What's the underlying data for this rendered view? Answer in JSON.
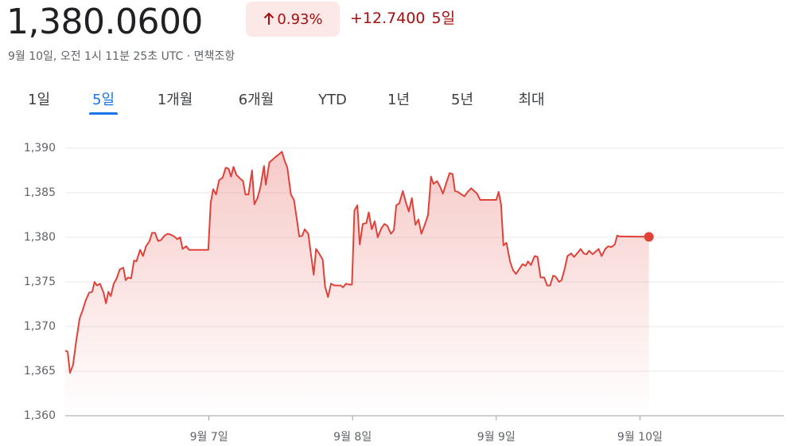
{
  "header": {
    "price": "1,380.0600",
    "change_percent": "0.93%",
    "change": "+12.7400",
    "period": "5일",
    "timestamp": "9월 10일, 오전 1시 11분 25초 UTC · 면책조항"
  },
  "tabs": {
    "items": [
      "1일",
      "5일",
      "1개월",
      "6개월",
      "YTD",
      "1년",
      "5년",
      "최대"
    ],
    "selected": 1
  },
  "chart_data": {
    "type": "line",
    "color": "#e0423a",
    "grid": true,
    "xlim": [
      0,
      120
    ],
    "xticks": [
      {
        "value": 24,
        "label": "9월 7일"
      },
      {
        "value": 48,
        "label": "9월 8일"
      },
      {
        "value": 72,
        "label": "9월 9일"
      },
      {
        "value": 96,
        "label": "9월 10일"
      }
    ],
    "ylim": [
      1360,
      1390
    ],
    "yticks": [
      {
        "value": 1360,
        "label": "1,360"
      },
      {
        "value": 1365,
        "label": "1,365"
      },
      {
        "value": 1370,
        "label": "1,370"
      },
      {
        "value": 1375,
        "label": "1,375"
      },
      {
        "value": 1380,
        "label": "1,380"
      },
      {
        "value": 1385,
        "label": "1,385"
      },
      {
        "value": 1390,
        "label": "1,390"
      }
    ],
    "x": [
      0,
      0.4,
      0.8,
      1.3,
      1.9,
      2.4,
      2.9,
      3.4,
      4.0,
      4.5,
      4.9,
      5.3,
      5.8,
      6.4,
      6.8,
      7.2,
      7.6,
      8.1,
      8.6,
      9.1,
      9.7,
      10.1,
      10.5,
      11.0,
      11.5,
      11.9,
      12.5,
      13.0,
      13.5,
      14.1,
      14.5,
      15.0,
      15.5,
      16.0,
      16.6,
      17.1,
      17.6,
      18.2,
      18.7,
      19.2,
      19.6,
      20.2,
      20.7,
      23.9,
      24.3,
      24.7,
      25.2,
      25.7,
      26.3,
      26.8,
      27.3,
      27.7,
      28.1,
      28.6,
      29.2,
      29.7,
      30.1,
      30.6,
      31.2,
      31.6,
      32.1,
      32.6,
      33.2,
      33.5,
      34.1,
      34.6,
      35.1,
      35.7,
      36.2,
      36.6,
      37.1,
      37.7,
      38.2,
      38.6,
      39.1,
      39.6,
      40.0,
      40.6,
      41.1,
      41.5,
      41.9,
      42.4,
      43.0,
      43.4,
      43.9,
      44.4,
      45.0,
      45.5,
      46.0,
      46.4,
      46.9,
      47.5,
      47.9,
      48.3,
      48.8,
      49.2,
      49.7,
      50.3,
      50.7,
      51.2,
      51.7,
      52.2,
      52.8,
      53.3,
      53.8,
      54.4,
      54.9,
      55.3,
      55.8,
      56.4,
      56.9,
      57.4,
      57.9,
      58.5,
      59.0,
      59.5,
      60.1,
      60.6,
      61.1,
      61.5,
      62.1,
      62.6,
      63.1,
      63.6,
      64.2,
      64.7,
      65.1,
      65.6,
      66.2,
      66.7,
      67.2,
      67.8,
      68.3,
      68.8,
      69.3,
      72.0,
      72.4,
      72.8,
      73.2,
      73.7,
      74.3,
      74.8,
      75.3,
      75.8,
      76.4,
      76.9,
      77.3,
      77.8,
      78.4,
      78.9,
      79.4,
      80.0,
      80.5,
      81.0,
      81.5,
      81.9,
      82.5,
      82.9,
      83.4,
      83.9,
      84.5,
      85.0,
      85.5,
      86.1,
      86.6,
      87.1,
      87.5,
      88.1,
      88.6,
      89.1,
      89.6,
      90.2,
      90.7,
      91.2,
      91.8,
      92.2,
      92.7,
      97.5
    ],
    "values": [
      1367.3,
      1367.2,
      1364.8,
      1365.7,
      1368.7,
      1370.9,
      1371.8,
      1372.9,
      1373.8,
      1373.9,
      1375.0,
      1374.6,
      1374.8,
      1373.8,
      1372.6,
      1373.9,
      1373.4,
      1374.8,
      1375.4,
      1376.4,
      1376.6,
      1375.2,
      1375.5,
      1375.4,
      1377.4,
      1377.3,
      1378.6,
      1377.9,
      1379.0,
      1379.6,
      1380.5,
      1380.5,
      1379.6,
      1379.7,
      1380.2,
      1380.4,
      1380.3,
      1380.1,
      1379.8,
      1380.0,
      1378.7,
      1379.0,
      1378.6,
      1378.6,
      1383.9,
      1385.4,
      1384.8,
      1386.4,
      1386.7,
      1387.8,
      1387.7,
      1386.8,
      1387.9,
      1387.0,
      1386.6,
      1386.3,
      1384.8,
      1384.8,
      1387.5,
      1383.7,
      1384.4,
      1385.6,
      1388.0,
      1385.9,
      1388.4,
      1388.7,
      1389.0,
      1389.3,
      1389.6,
      1388.7,
      1387.8,
      1384.8,
      1384.2,
      1382.4,
      1380.1,
      1380.2,
      1380.9,
      1380.4,
      1377.8,
      1375.8,
      1378.7,
      1378.2,
      1377.5,
      1374.5,
      1373.3,
      1374.8,
      1374.6,
      1374.6,
      1374.6,
      1374.4,
      1374.8,
      1374.7,
      1374.7,
      1383.0,
      1383.6,
      1379.2,
      1381.5,
      1381.6,
      1382.8,
      1380.9,
      1381.8,
      1380.0,
      1381.0,
      1381.5,
      1381.3,
      1380.4,
      1380.8,
      1383.6,
      1383.8,
      1385.2,
      1383.9,
      1382.9,
      1384.4,
      1381.4,
      1382.0,
      1380.4,
      1381.5,
      1382.5,
      1386.8,
      1386.0,
      1386.3,
      1385.7,
      1384.9,
      1386.0,
      1387.2,
      1387.1,
      1385.2,
      1385.1,
      1384.8,
      1384.6,
      1385.1,
      1385.5,
      1385.2,
      1384.9,
      1384.2,
      1384.2,
      1385.1,
      1383.7,
      1379.1,
      1379.4,
      1377.3,
      1376.3,
      1375.9,
      1376.4,
      1377.0,
      1376.8,
      1377.3,
      1376.9,
      1377.9,
      1377.8,
      1375.5,
      1375.5,
      1374.6,
      1374.6,
      1375.7,
      1375.6,
      1375.0,
      1375.2,
      1376.4,
      1377.9,
      1378.2,
      1377.8,
      1378.2,
      1378.7,
      1378.2,
      1378.1,
      1378.5,
      1378.1,
      1378.4,
      1378.7,
      1377.9,
      1378.7,
      1379.0,
      1378.9,
      1379.2,
      1380.2,
      1380.1,
      1380.06
    ]
  }
}
